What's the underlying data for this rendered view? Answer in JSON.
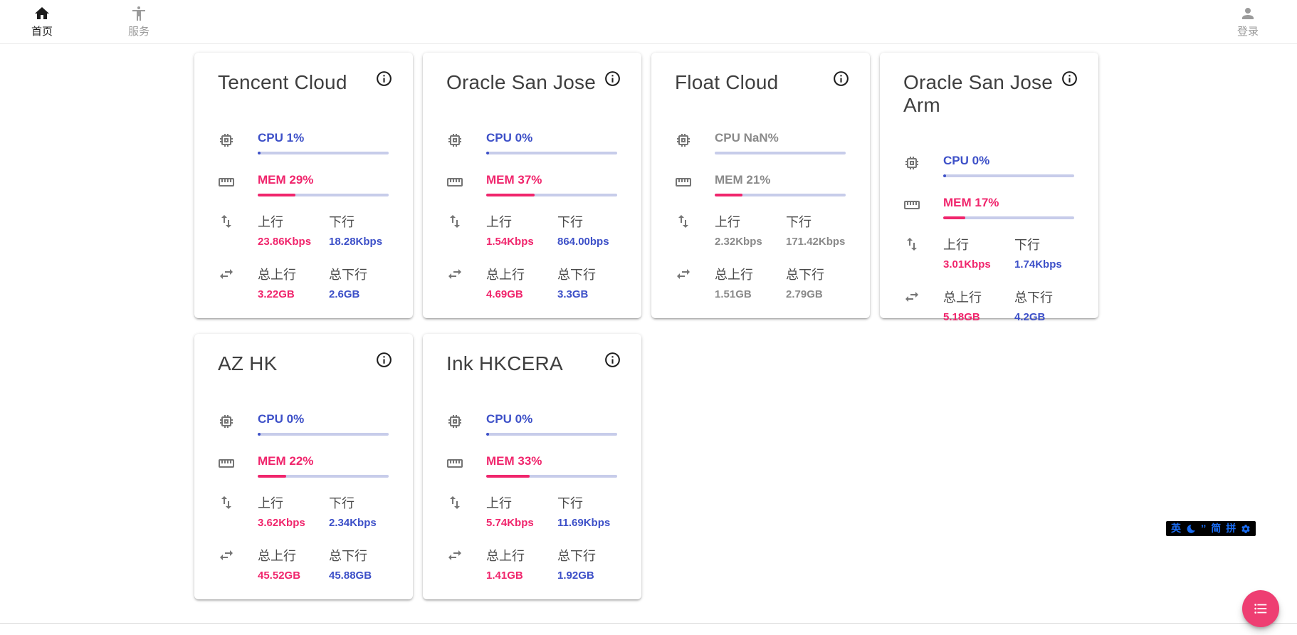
{
  "nav": {
    "home_label": "首页",
    "services_label": "服务",
    "login_label": "登录"
  },
  "labels": {
    "upload": "上行",
    "download": "下行",
    "total_upload": "总上行",
    "total_download": "总下行"
  },
  "colors": {
    "accent_pink": "#f0256c",
    "accent_blue": "#3d50c8",
    "bar_track": "#c7ccea",
    "muted_text": "#8a8a8a",
    "fab_pink": "#ee3e72",
    "ime_blue": "#1a6df4"
  },
  "servers": [
    {
      "name": "Tencent Cloud",
      "cpu_text": "CPU 1%",
      "cpu_pct": 1,
      "mem_text": "MEM 29%",
      "mem_pct": 29,
      "muted": false,
      "upload": "23.86Kbps",
      "download": "18.28Kbps",
      "total_upload": "3.22GB",
      "total_download": "2.6GB"
    },
    {
      "name": "Oracle San Jose",
      "cpu_text": "CPU 0%",
      "cpu_pct": 0,
      "mem_text": "MEM 37%",
      "mem_pct": 37,
      "muted": false,
      "upload": "1.54Kbps",
      "download": "864.00bps",
      "total_upload": "4.69GB",
      "total_download": "3.3GB"
    },
    {
      "name": "Float Cloud",
      "cpu_text": "CPU NaN%",
      "cpu_pct": null,
      "mem_text": "MEM 21%",
      "mem_pct": 21,
      "muted": true,
      "upload": "2.32Kbps",
      "download": "171.42Kbps",
      "total_upload": "1.51GB",
      "total_download": "2.79GB"
    },
    {
      "name": "Oracle San Jose Arm",
      "cpu_text": "CPU 0%",
      "cpu_pct": 0,
      "mem_text": "MEM 17%",
      "mem_pct": 17,
      "muted": false,
      "upload": "3.01Kbps",
      "download": "1.74Kbps",
      "total_upload": "5.18GB",
      "total_download": "4.2GB"
    },
    {
      "name": "AZ HK",
      "cpu_text": "CPU 0%",
      "cpu_pct": 0,
      "mem_text": "MEM 22%",
      "mem_pct": 22,
      "muted": false,
      "upload": "3.62Kbps",
      "download": "2.34Kbps",
      "total_upload": "45.52GB",
      "total_download": "45.88GB"
    },
    {
      "name": "Ink HKCERA",
      "cpu_text": "CPU 0%",
      "cpu_pct": 0,
      "mem_text": "MEM 33%",
      "mem_pct": 33,
      "muted": false,
      "upload": "5.74Kbps",
      "download": "11.69Kbps",
      "total_upload": "1.41GB",
      "total_download": "1.92GB"
    }
  ],
  "ime": {
    "lang": "英",
    "punct": "’’",
    "charset": "简",
    "scheme": "拼"
  }
}
